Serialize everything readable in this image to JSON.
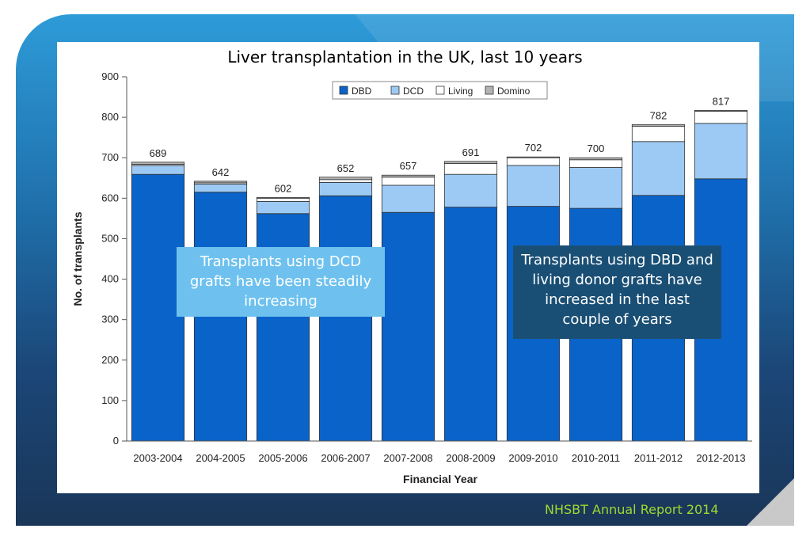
{
  "chart_data": {
    "type": "bar",
    "stacked": true,
    "title": "Liver transplantation in the UK, last 10 years",
    "xlabel": "Financial Year",
    "ylabel": "No. of transplants",
    "ylim": [
      0,
      900
    ],
    "yticks": [
      0,
      100,
      200,
      300,
      400,
      500,
      600,
      700,
      800,
      900
    ],
    "grid": false,
    "legend_position": "top-center",
    "categories": [
      "2003-2004",
      "2004-2005",
      "2005-2006",
      "2006-2007",
      "2007-2008",
      "2008-2009",
      "2009-2010",
      "2010-2011",
      "2011-2012",
      "2012-2013"
    ],
    "series": [
      {
        "name": "DBD",
        "color": "#0a63c8",
        "values": [
          659,
          615,
          562,
          606,
          565,
          578,
          580,
          575,
          607,
          648
        ]
      },
      {
        "name": "DCD",
        "color": "#9dcaf5",
        "values": [
          22,
          20,
          30,
          33,
          67,
          81,
          101,
          101,
          133,
          137
        ]
      },
      {
        "name": "Living",
        "color": "#ffffff",
        "values": [
          3,
          3,
          8,
          7,
          20,
          27,
          19,
          19,
          38,
          30
        ]
      },
      {
        "name": "Domino",
        "color": "#b3b3b3",
        "values": [
          5,
          4,
          2,
          6,
          5,
          5,
          2,
          5,
          4,
          2
        ]
      }
    ],
    "totals": [
      689,
      642,
      602,
      652,
      657,
      691,
      702,
      700,
      782,
      817
    ]
  },
  "annotations": {
    "dcd_callout": "Transplants using DCD grafts have been steadily increasing",
    "dbd_callout": "Transplants using DBD and living donor grafts have increased in the last couple of years"
  },
  "footer": "NHSBT Annual Report 2014",
  "colors": {
    "dcd_callout_bg": "#6ec1ef",
    "dbd_callout_bg": "#1a4f75",
    "footer_text": "#9cdb2f"
  }
}
